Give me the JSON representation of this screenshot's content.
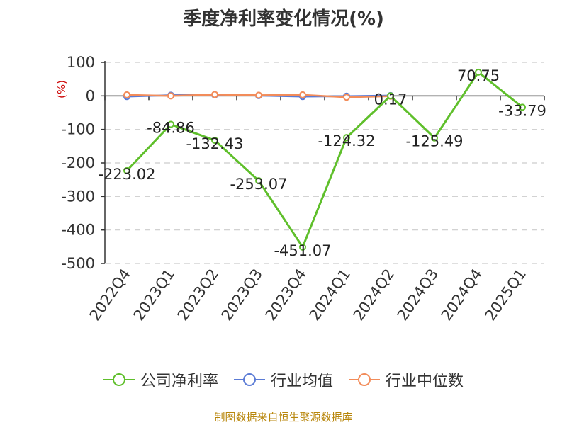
{
  "chart_data": {
    "type": "line",
    "title": "季度净利率变化情况(%)",
    "ylabel": "(%)",
    "ylim": [
      -500,
      100
    ],
    "yticks": [
      100,
      0,
      -100,
      -200,
      -300,
      -400,
      -500
    ],
    "categories": [
      "2022Q4",
      "2023Q1",
      "2023Q2",
      "2023Q3",
      "2023Q4",
      "2024Q1",
      "2024Q2",
      "2024Q3",
      "2024Q4",
      "2025Q1"
    ],
    "series": [
      {
        "name": "公司净利率",
        "color": "#5fbf2b",
        "values": [
          -223.02,
          -84.86,
          -132.43,
          -253.07,
          -451.07,
          -124.32,
          0.17,
          -125.49,
          70.75,
          -33.79
        ],
        "labels": [
          "-223.02",
          "-84.86",
          "-132.43",
          "-253.07",
          "-451.07",
          "-124.32",
          "0.17",
          "-125.49",
          "70.75",
          "-33.79"
        ]
      },
      {
        "name": "行业均值",
        "color": "#5b7bd5",
        "values": [
          -2,
          2,
          3,
          1,
          -2,
          -1,
          1,
          null,
          null,
          null
        ]
      },
      {
        "name": "行业中位数",
        "color": "#f28c5a",
        "values": [
          3,
          0,
          4,
          2,
          3,
          -4,
          -1,
          null,
          null,
          null
        ]
      }
    ],
    "grid": true,
    "legend_position": "bottom"
  },
  "legend": {
    "items": [
      "公司净利率",
      "行业均值",
      "行业中位数"
    ]
  },
  "source_note": "制图数据来自恒生聚源数据库"
}
